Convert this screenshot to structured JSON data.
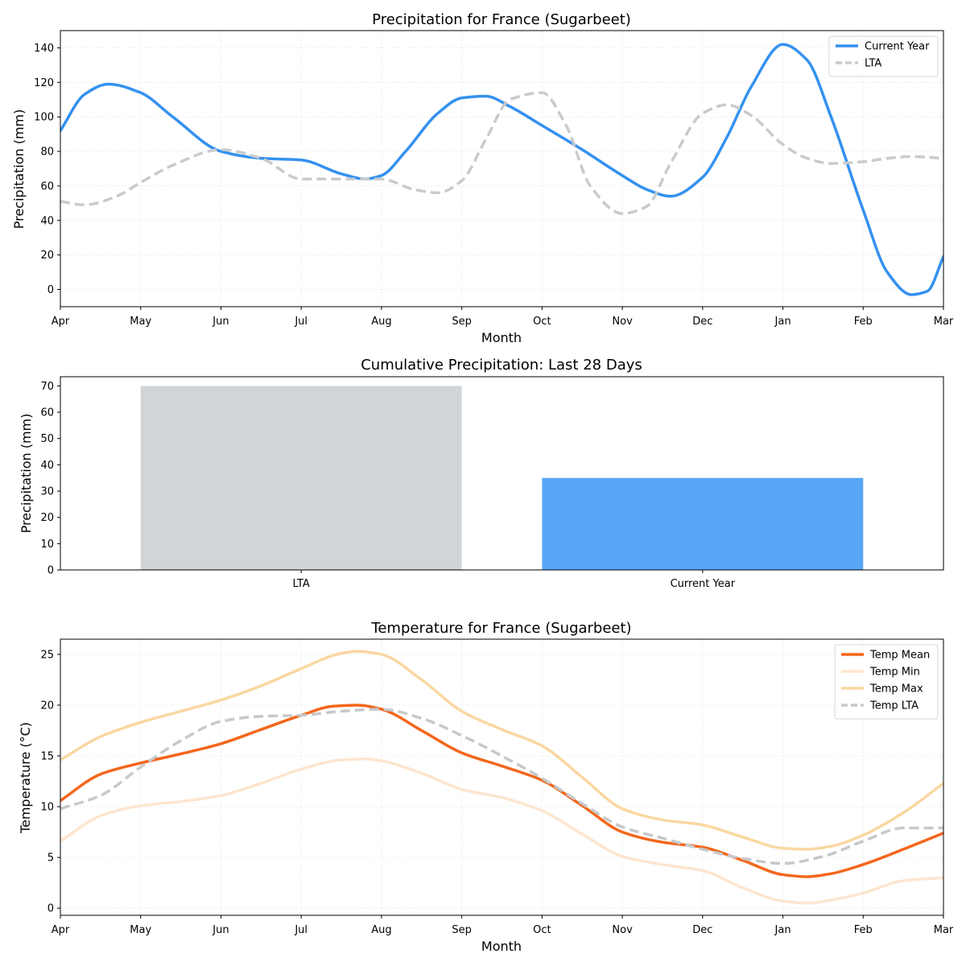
{
  "chart_data": [
    {
      "type": "line",
      "title": "Precipitation for France (Sugarbeet)",
      "xlabel": "Month",
      "ylabel": "Precipitation (mm)",
      "xlim": [
        0,
        11
      ],
      "ylim": [
        -10,
        150
      ],
      "yticks": [
        0,
        20,
        40,
        60,
        80,
        100,
        120,
        140
      ],
      "xtick_labels": [
        "Apr",
        "May",
        "Jun",
        "Jul",
        "Aug",
        "Sep",
        "Oct",
        "Nov",
        "Dec",
        "Jan",
        "Feb",
        "Mar"
      ],
      "grid": true,
      "legend_position": "top-right",
      "series": [
        {
          "name": "Current Year",
          "color": "#3491f0",
          "dash": "solid",
          "x": [
            0,
            0.3,
            0.6,
            1.0,
            1.4,
            2.0,
            2.5,
            3.0,
            3.5,
            3.8,
            4.0,
            4.3,
            4.7,
            5.0,
            5.3,
            5.6,
            6.0,
            6.5,
            7.0,
            7.3,
            7.6,
            8.0,
            8.3,
            8.6,
            9.0,
            9.3,
            9.6,
            10.0,
            10.3,
            10.6,
            10.8,
            11.0
          ],
          "values": [
            92,
            113,
            119,
            114,
            100,
            80,
            76,
            75,
            67,
            64,
            66,
            80,
            102,
            111,
            112,
            106,
            95,
            81,
            66,
            58,
            54,
            65,
            88,
            117,
            142,
            133,
            100,
            46,
            10,
            -3,
            -1,
            19
          ]
        },
        {
          "name": "LTA",
          "color": "#c8cbcd",
          "dash": "dashed",
          "x": [
            0,
            0.3,
            0.7,
            1.0,
            1.4,
            2.0,
            2.5,
            3.0,
            3.5,
            4.0,
            4.4,
            4.7,
            5.0,
            5.3,
            5.6,
            6.0,
            6.3,
            6.6,
            7.0,
            7.3,
            7.6,
            8.0,
            8.3,
            8.6,
            9.0,
            9.3,
            9.6,
            10.0,
            10.3,
            10.6,
            11.0
          ],
          "values": [
            51,
            49,
            54,
            62,
            72,
            81,
            76,
            64,
            64,
            64,
            58,
            56,
            63,
            87,
            110,
            114,
            95,
            60,
            44,
            48,
            73,
            102,
            107,
            101,
            84,
            76,
            73,
            74,
            76,
            77,
            76
          ]
        }
      ]
    },
    {
      "type": "bar",
      "title": "Cumulative Precipitation: Last 28 Days",
      "xlabel": "",
      "ylabel": "Precipitation (mm)",
      "categories": [
        "LTA",
        "Current Year"
      ],
      "values": [
        70,
        35
      ],
      "colors": [
        "#d1d5d8",
        "#58a6f6"
      ],
      "ylim": [
        0,
        73.5
      ],
      "yticks": [
        0,
        10,
        20,
        30,
        40,
        50,
        60,
        70
      ],
      "grid": false
    },
    {
      "type": "line",
      "title": "Temperature for France (Sugarbeet)",
      "xlabel": "Month",
      "ylabel": "Temperature (°C)",
      "xlim": [
        0,
        11
      ],
      "ylim": [
        -0.7,
        26.5
      ],
      "yticks": [
        0,
        5,
        10,
        15,
        20,
        25
      ],
      "xtick_labels": [
        "Apr",
        "May",
        "Jun",
        "Jul",
        "Aug",
        "Sep",
        "Oct",
        "Nov",
        "Dec",
        "Jan",
        "Feb",
        "Mar"
      ],
      "grid": true,
      "legend_position": "top-right",
      "series": [
        {
          "name": "Temp Mean",
          "color": "#f4661b",
          "dash": "solid",
          "x": [
            0,
            0.5,
            1.0,
            1.5,
            2.0,
            2.5,
            3.0,
            3.4,
            3.7,
            4.0,
            4.5,
            5.0,
            5.5,
            6.0,
            6.5,
            7.0,
            7.5,
            8.0,
            8.5,
            9.0,
            9.3,
            9.6,
            10.0,
            10.5,
            11.0
          ],
          "values": [
            10.6,
            13.2,
            14.3,
            15.2,
            16.2,
            17.6,
            19.0,
            19.9,
            20.0,
            19.6,
            17.5,
            15.3,
            14.0,
            12.6,
            10.1,
            7.5,
            6.5,
            6.0,
            4.7,
            3.3,
            3.1,
            3.4,
            4.3,
            5.8,
            7.4
          ]
        },
        {
          "name": "Temp Min",
          "color": "#fde5cf",
          "dash": "solid",
          "x": [
            0,
            0.5,
            1.0,
            1.5,
            2.0,
            2.5,
            3.0,
            3.5,
            3.8,
            4.0,
            4.5,
            5.0,
            5.5,
            6.0,
            6.5,
            7.0,
            7.5,
            8.0,
            8.5,
            9.0,
            9.3,
            9.6,
            10.0,
            10.5,
            11.0
          ],
          "values": [
            6.6,
            9.1,
            10.1,
            10.5,
            11.1,
            12.3,
            13.7,
            14.6,
            14.7,
            14.5,
            13.3,
            11.7,
            10.9,
            9.6,
            7.3,
            5.1,
            4.3,
            3.7,
            2.0,
            0.7,
            0.5,
            0.8,
            1.5,
            2.7,
            3.0
          ]
        },
        {
          "name": "Temp Max",
          "color": "#fad7a1",
          "dash": "solid",
          "x": [
            0,
            0.5,
            1.0,
            1.5,
            2.0,
            2.5,
            3.0,
            3.5,
            3.7,
            4.0,
            4.5,
            5.0,
            5.5,
            6.0,
            6.5,
            7.0,
            7.5,
            8.0,
            8.5,
            9.0,
            9.3,
            9.6,
            10.0,
            10.5,
            11.0
          ],
          "values": [
            14.6,
            16.9,
            18.3,
            19.4,
            20.5,
            21.9,
            23.6,
            25.1,
            25.3,
            25.0,
            22.5,
            19.4,
            17.6,
            16.0,
            12.9,
            9.8,
            8.7,
            8.2,
            7.0,
            5.9,
            5.8,
            6.1,
            7.2,
            9.4,
            12.3
          ]
        },
        {
          "name": "Temp LTA",
          "color": "#c6c9cb",
          "dash": "dashed",
          "x": [
            0,
            0.5,
            1.0,
            1.5,
            2.0,
            2.5,
            3.0,
            3.5,
            4.0,
            4.5,
            5.0,
            5.5,
            6.0,
            6.5,
            7.0,
            7.5,
            8.0,
            8.5,
            9.0,
            9.5,
            10.0,
            10.5,
            11.0
          ],
          "values": [
            9.8,
            11.1,
            13.9,
            16.5,
            18.4,
            18.9,
            19.0,
            19.4,
            19.6,
            18.7,
            17.0,
            15.0,
            12.8,
            10.3,
            8.0,
            6.9,
            5.8,
            4.9,
            4.4,
            5.1,
            6.6,
            7.9,
            7.9
          ]
        }
      ]
    }
  ]
}
